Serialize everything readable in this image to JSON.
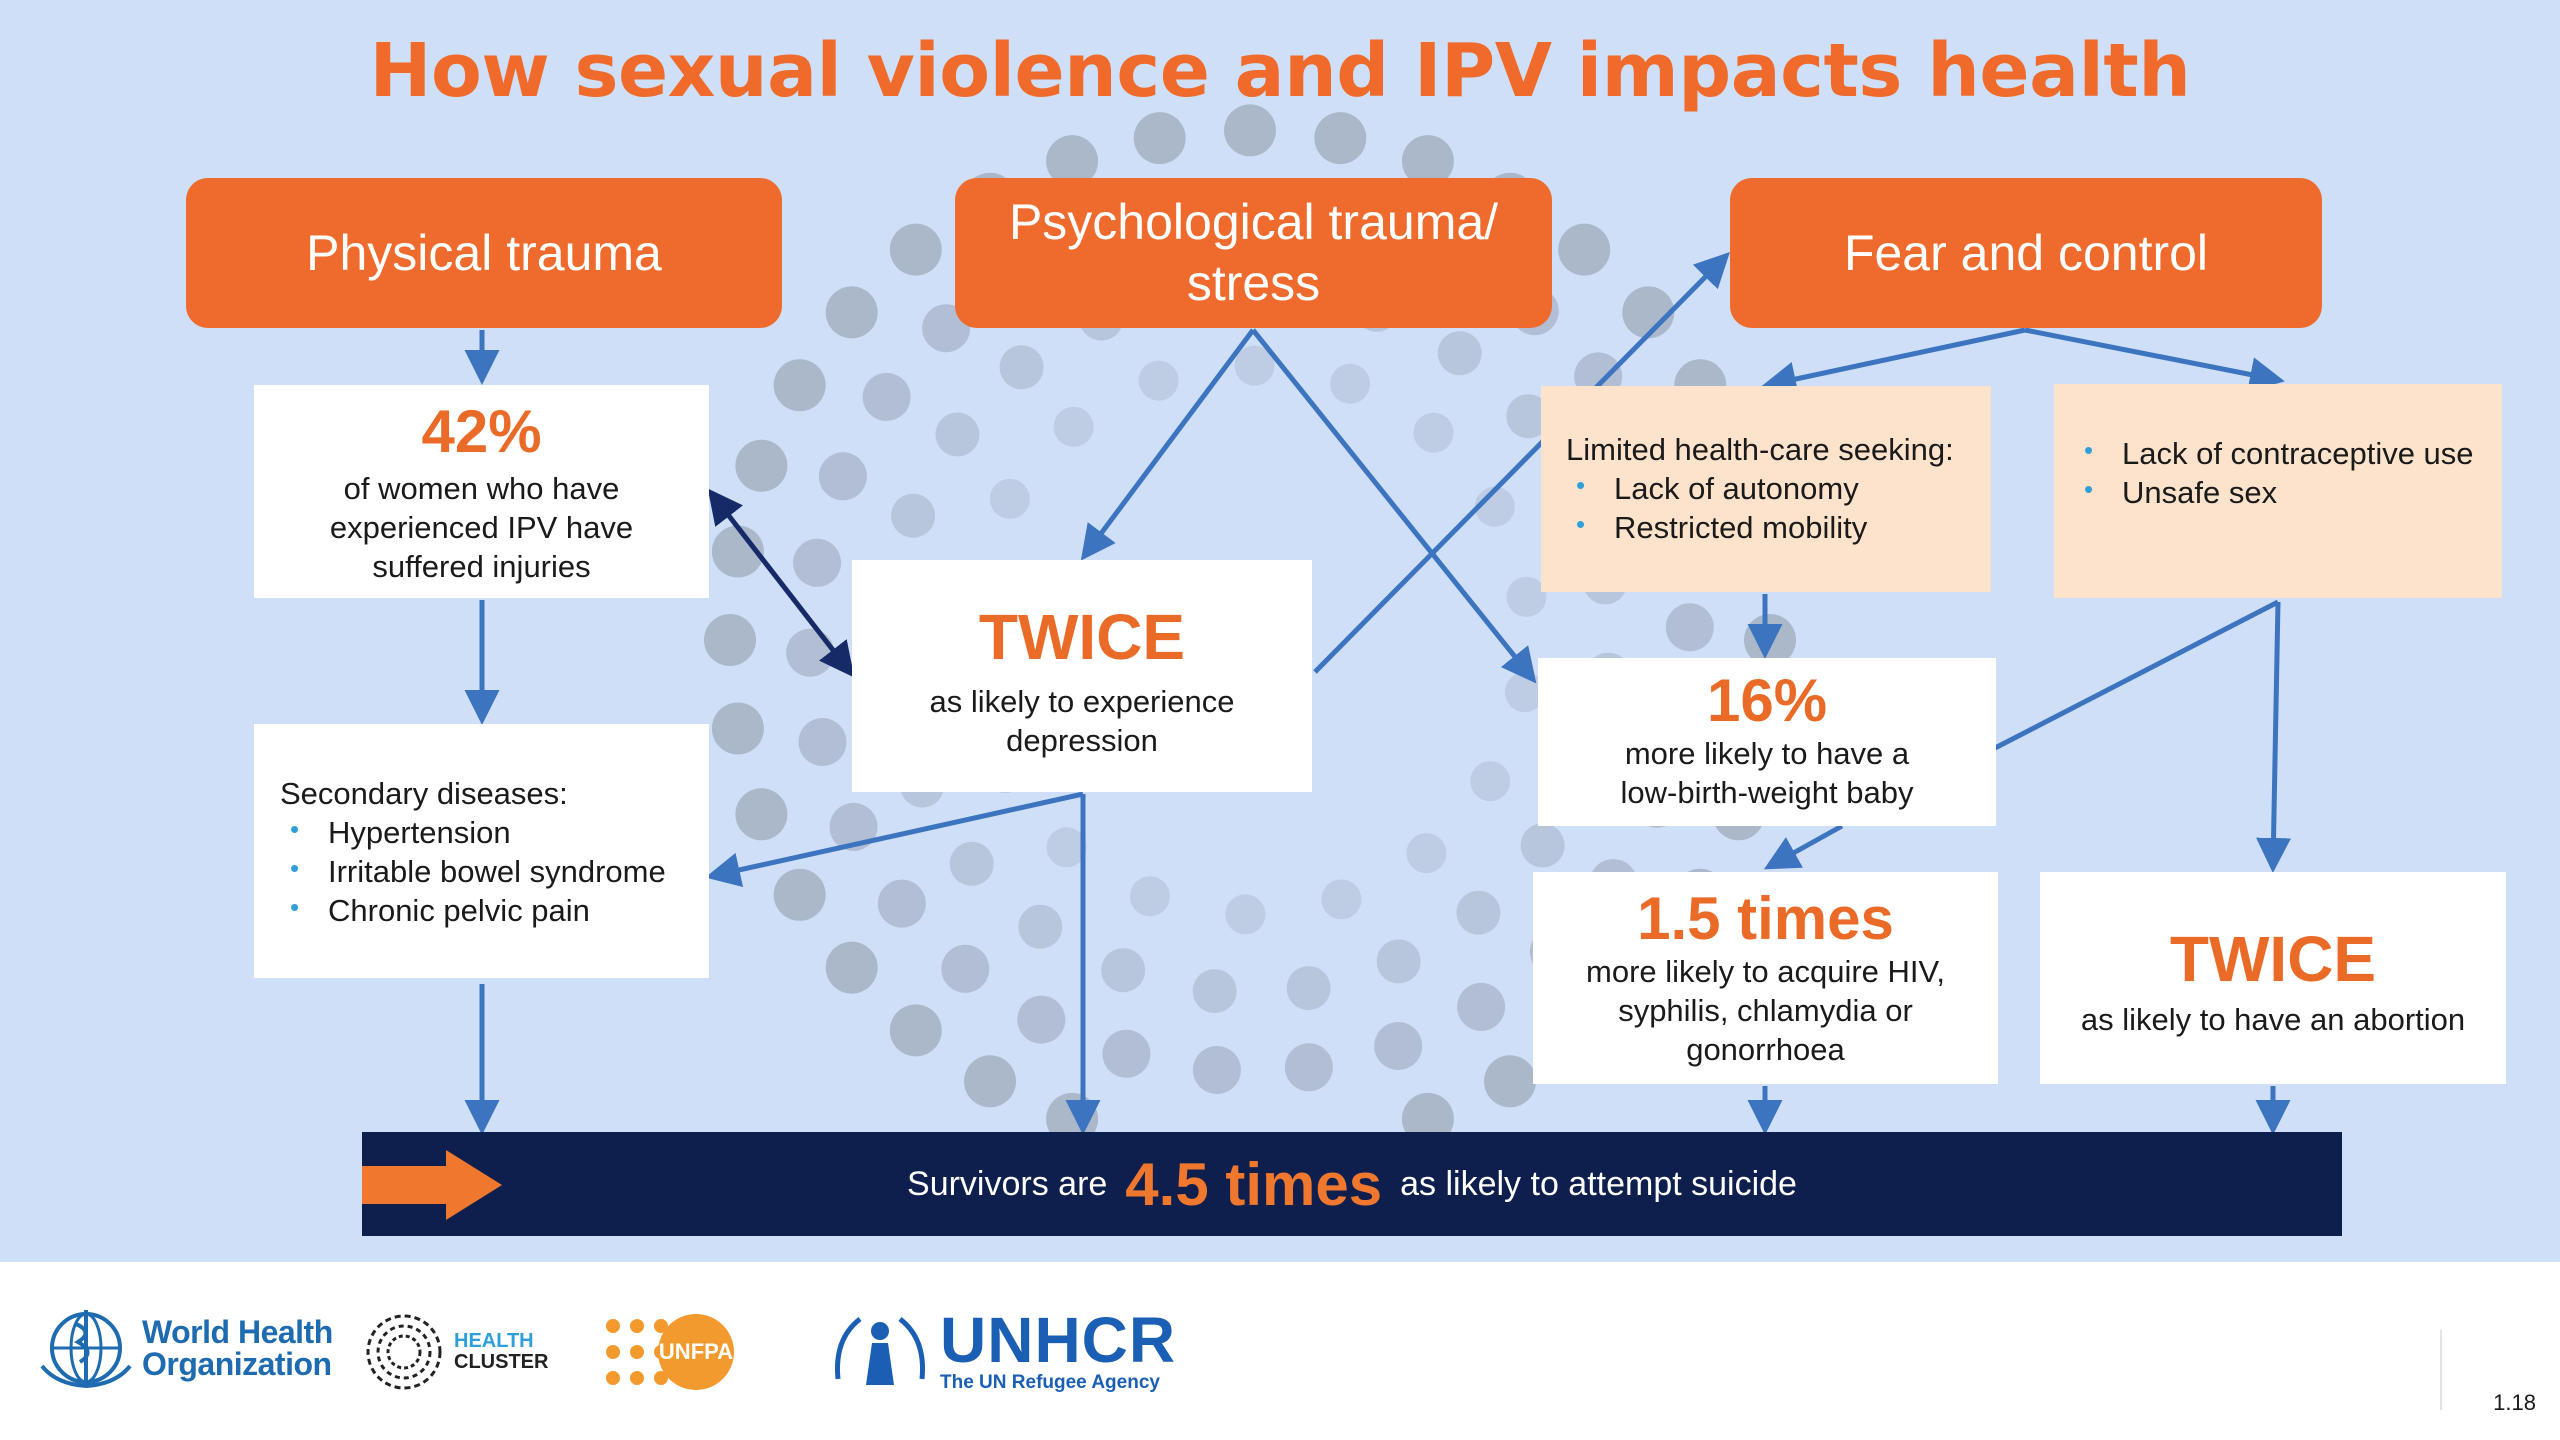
{
  "title": "How sexual violence and IPV impacts health",
  "headers": {
    "physical": "Physical trauma",
    "psychological": "Psychological trauma/ stress",
    "fear": "Fear and control"
  },
  "injuries": {
    "stat": "42%",
    "text": "of women who have experienced IPV have suffered injuries"
  },
  "secondary": {
    "heading": "Secondary diseases:",
    "items": [
      "Hypertension",
      "Irritable bowel syndrome",
      "Chronic pelvic pain"
    ]
  },
  "depression": {
    "stat": "TWICE",
    "text": "as likely to experience depression"
  },
  "healthcare": {
    "heading": "Limited health-care seeking:",
    "items": [
      "Lack of autonomy",
      "Restricted mobility"
    ]
  },
  "contraceptive": {
    "items": [
      "Lack of contraceptive use",
      "Unsafe sex"
    ]
  },
  "lowbirth": {
    "stat": "16%",
    "text": "more likely to have a low-birth-weight baby"
  },
  "hiv": {
    "stat": "1.5 times",
    "text": "more likely to acquire HIV, syphilis, chlamydia or gonorrhoea"
  },
  "abortion": {
    "stat": "TWICE",
    "text": "as likely to have an abortion"
  },
  "banner": {
    "pre": "Survivors are",
    "stat": "4.5 times",
    "post": "as likely to attempt suicide"
  },
  "footer": {
    "who": [
      "World Health",
      "Organization"
    ],
    "health_cluster": [
      "HEALTH",
      "CLUSTER"
    ],
    "unfpa": "UNFPA",
    "unhcr": "UNHCR",
    "unhcr_sub": "The UN Refugee Agency",
    "page_number": "1.18"
  },
  "colors": {
    "background": "#cfdff7",
    "accent_orange": "#ef6b2d",
    "banner_navy": "#0f1f4d",
    "arrow_blue": "#3d74c0",
    "peach_box": "#fde3cc",
    "bullet_blue": "#2e9fd8"
  }
}
